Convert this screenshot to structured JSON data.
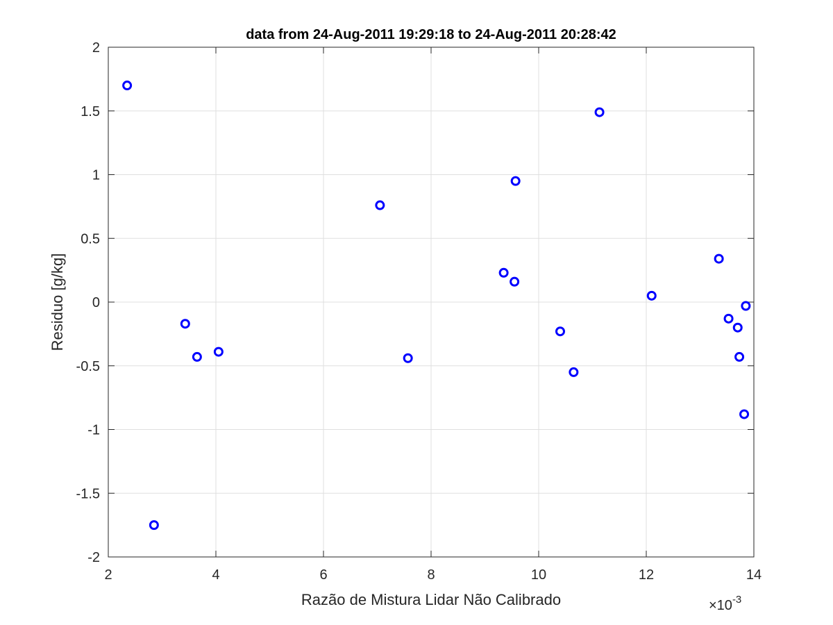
{
  "chart_data": {
    "type": "scatter",
    "title": "data from 24-Aug-2011 19:29:18 to 24-Aug-2011 20:28:42",
    "xlabel": "Razão de Mistura Lidar Não Calibrado",
    "ylabel": "Residuo [g/kg]",
    "x_exponent_label": "×10",
    "x_exponent_power": "-3",
    "x_scale": 0.001,
    "xlim": [
      2,
      14
    ],
    "ylim": [
      -2,
      2
    ],
    "x_ticks": [
      2,
      4,
      6,
      8,
      10,
      12,
      14
    ],
    "x_tick_labels": [
      "2",
      "4",
      "6",
      "8",
      "10",
      "12",
      "14"
    ],
    "y_ticks": [
      -2,
      -1.5,
      -1,
      -0.5,
      0,
      0.5,
      1,
      1.5,
      2
    ],
    "y_tick_labels": [
      "-2",
      "-1.5",
      "-1",
      "-0.5",
      "0",
      "0.5",
      "1",
      "1.5",
      "2"
    ],
    "grid": true,
    "marker": "circle",
    "color": "#0000ff",
    "series": [
      {
        "points": [
          {
            "x": 2.35,
            "y": 1.7
          },
          {
            "x": 2.85,
            "y": -1.75
          },
          {
            "x": 3.43,
            "y": -0.17
          },
          {
            "x": 3.65,
            "y": -0.43
          },
          {
            "x": 4.05,
            "y": -0.39
          },
          {
            "x": 7.05,
            "y": 0.76
          },
          {
            "x": 7.57,
            "y": -0.44
          },
          {
            "x": 9.35,
            "y": 0.23
          },
          {
            "x": 9.55,
            "y": 0.16
          },
          {
            "x": 9.57,
            "y": 0.95
          },
          {
            "x": 10.4,
            "y": -0.23
          },
          {
            "x": 10.65,
            "y": -0.55
          },
          {
            "x": 11.13,
            "y": 1.49
          },
          {
            "x": 12.1,
            "y": 0.05
          },
          {
            "x": 13.35,
            "y": 0.34
          },
          {
            "x": 13.53,
            "y": -0.13
          },
          {
            "x": 13.7,
            "y": -0.2
          },
          {
            "x": 13.73,
            "y": -0.43
          },
          {
            "x": 13.82,
            "y": -0.88
          },
          {
            "x": 13.85,
            "y": -0.03
          }
        ]
      }
    ]
  }
}
